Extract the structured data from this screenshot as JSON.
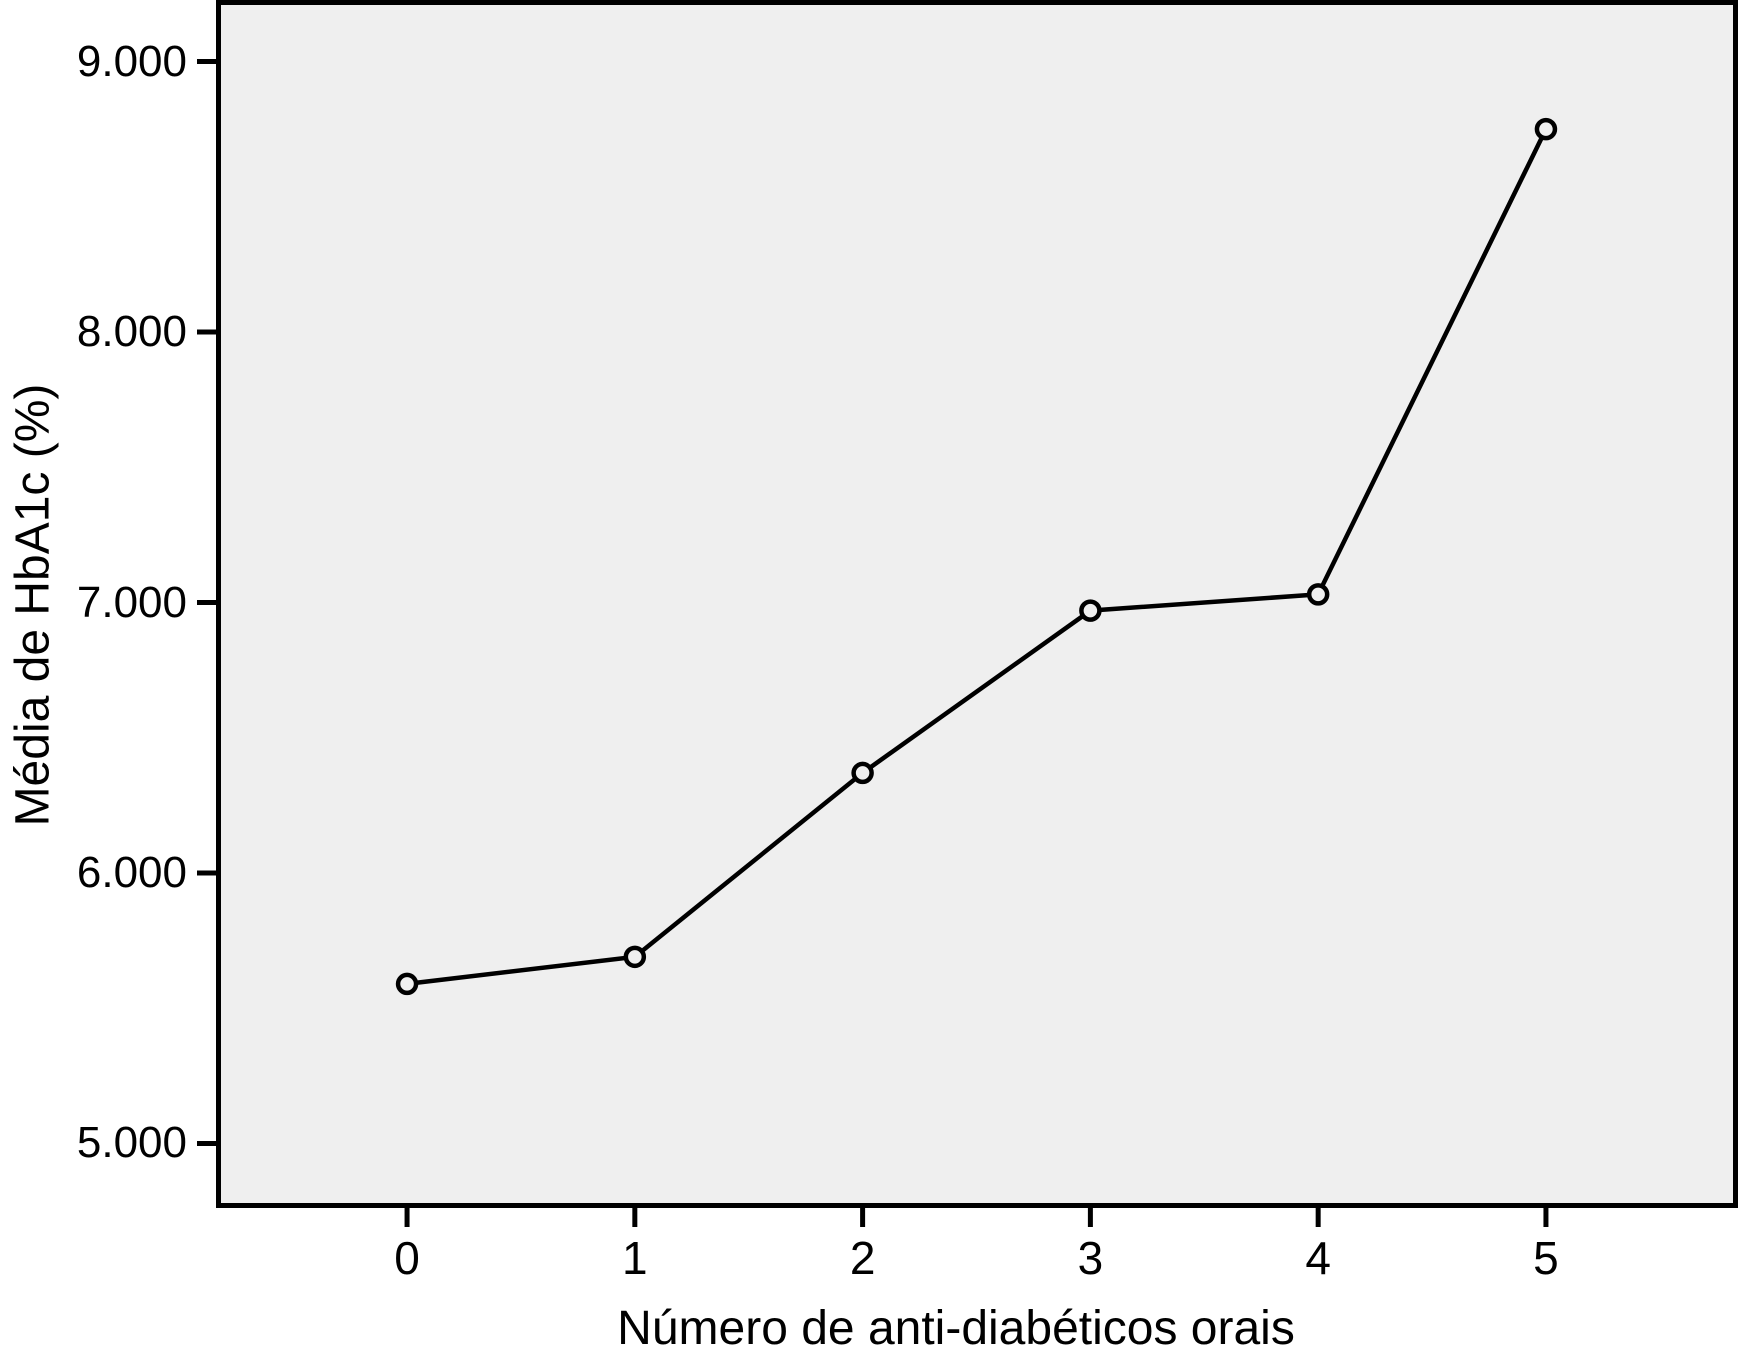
{
  "figure": {
    "background_color": "#ffffff",
    "plot_background_color": "#efefef",
    "frame_color": "#000000",
    "line_color": "#000000",
    "marker_style": "open-circle"
  },
  "chart_data": {
    "type": "line",
    "title": "",
    "xlabel": "Número de anti-diabéticos orais",
    "ylabel": "Média de HbA1c (%)",
    "x": [
      0,
      1,
      2,
      3,
      4,
      5
    ],
    "x_tick_labels": [
      "0",
      "1",
      "2",
      "3",
      "4",
      "5"
    ],
    "y_tick_values": [
      5,
      6,
      7,
      8,
      9
    ],
    "y_tick_labels": [
      "5.000",
      "6.000",
      "7.000",
      "8.000",
      "9.000"
    ],
    "series": [
      {
        "name": "Média de HbA1c (%)",
        "values": [
          5.59,
          5.69,
          6.37,
          6.97,
          7.03,
          8.75
        ]
      }
    ],
    "xlim": [
      -0.83,
      5.83
    ],
    "ylim": [
      4.78,
      9.22
    ],
    "grid": false,
    "legend_position": "none"
  }
}
